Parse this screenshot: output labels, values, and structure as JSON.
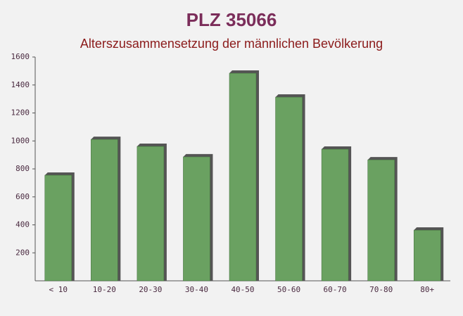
{
  "chart_data": {
    "type": "bar",
    "title": "PLZ 35066",
    "subtitle": "Alterszusammensetzung der männlichen Bevölkerung",
    "categories": [
      "< 10",
      "10-20",
      "20-30",
      "30-40",
      "40-50",
      "50-60",
      "60-70",
      "70-80",
      "80+"
    ],
    "values": [
      755,
      1011,
      961,
      886,
      1484,
      1313,
      941,
      865,
      362
    ],
    "color": "#6aa161",
    "ylim": [
      0,
      1600
    ],
    "yticks": [
      200,
      400,
      600,
      800,
      1000,
      1200,
      1400,
      1600
    ],
    "grid": false
  }
}
